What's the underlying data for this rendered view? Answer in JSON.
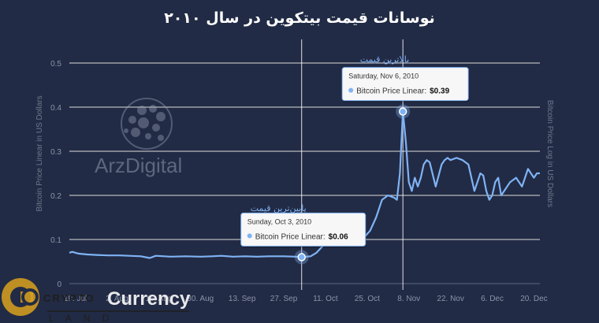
{
  "chart_data": {
    "type": "line",
    "title": "نوسانات قیمت بیتکوین در سال ۲۰۱۰",
    "ylabel": "Bitcoin Price Linear in US Dollars",
    "ylabel_right": "Bitcoin Price Log in US Dollars",
    "ylim": [
      0,
      0.5
    ],
    "xlim": [
      "2010-07-17",
      "2010-12-22"
    ],
    "yticks": [
      "0",
      "0.1",
      "0.2",
      "0.3",
      "0.4",
      "0.5"
    ],
    "xticks": [
      {
        "date": "2010-07-19",
        "label": "19. Jul"
      },
      {
        "date": "2010-08-02",
        "label": "2. Aug"
      },
      {
        "date": "2010-08-16",
        "label": "16. Aug"
      },
      {
        "date": "2010-08-30",
        "label": "30. Aug"
      },
      {
        "date": "2010-09-13",
        "label": "13. Sep"
      },
      {
        "date": "2010-09-27",
        "label": "27. Sep"
      },
      {
        "date": "2010-10-11",
        "label": "11. Oct"
      },
      {
        "date": "2010-10-25",
        "label": "25. Oct"
      },
      {
        "date": "2010-11-08",
        "label": "8. Nov"
      },
      {
        "date": "2010-11-22",
        "label": "22. Nov"
      },
      {
        "date": "2010-12-06",
        "label": "6. Dec"
      },
      {
        "date": "2010-12-20",
        "label": "20. Dec"
      }
    ],
    "grid": true,
    "legend": "none",
    "series": [
      {
        "color": "#7fb3f5",
        "x": [
          "2010-07-17",
          "2010-07-18",
          "2010-07-20",
          "2010-07-23",
          "2010-07-26",
          "2010-07-30",
          "2010-08-03",
          "2010-08-06",
          "2010-08-10",
          "2010-08-13",
          "2010-08-15",
          "2010-08-20",
          "2010-08-25",
          "2010-08-30",
          "2010-09-03",
          "2010-09-06",
          "2010-09-10",
          "2010-09-14",
          "2010-09-18",
          "2010-09-22",
          "2010-09-27",
          "2010-10-01",
          "2010-10-03",
          "2010-10-06",
          "2010-10-08",
          "2010-10-11",
          "2010-10-14",
          "2010-10-17",
          "2010-10-20",
          "2010-10-22",
          "2010-10-24",
          "2010-10-26",
          "2010-10-28",
          "2010-10-30",
          "2010-11-01",
          "2010-11-03",
          "2010-11-04",
          "2010-11-05",
          "2010-11-06",
          "2010-11-07",
          "2010-11-08",
          "2010-11-09",
          "2010-11-10",
          "2010-11-11",
          "2010-11-12",
          "2010-11-13",
          "2010-11-14",
          "2010-11-15",
          "2010-11-17",
          "2010-11-19",
          "2010-11-20",
          "2010-11-21",
          "2010-11-22",
          "2010-11-24",
          "2010-11-26",
          "2010-11-28",
          "2010-11-30",
          "2010-12-01",
          "2010-12-02",
          "2010-12-03",
          "2010-12-04",
          "2010-12-05",
          "2010-12-06",
          "2010-12-07",
          "2010-12-08",
          "2010-12-09",
          "2010-12-10",
          "2010-12-12",
          "2010-12-14",
          "2010-12-16",
          "2010-12-17",
          "2010-12-18",
          "2010-12-20",
          "2010-12-21",
          "2010-12-22"
        ],
        "y": [
          0.07,
          0.072,
          0.068,
          0.066,
          0.065,
          0.064,
          0.064,
          0.063,
          0.062,
          0.058,
          0.063,
          0.061,
          0.062,
          0.061,
          0.062,
          0.063,
          0.061,
          0.062,
          0.061,
          0.062,
          0.062,
          0.061,
          0.06,
          0.062,
          0.07,
          0.092,
          0.1,
          0.101,
          0.102,
          0.098,
          0.105,
          0.12,
          0.15,
          0.19,
          0.2,
          0.195,
          0.19,
          0.25,
          0.39,
          0.32,
          0.23,
          0.21,
          0.24,
          0.22,
          0.24,
          0.27,
          0.28,
          0.275,
          0.22,
          0.27,
          0.28,
          0.285,
          0.28,
          0.285,
          0.28,
          0.27,
          0.21,
          0.23,
          0.25,
          0.245,
          0.21,
          0.19,
          0.2,
          0.23,
          0.24,
          0.2,
          0.21,
          0.23,
          0.24,
          0.22,
          0.24,
          0.26,
          0.24,
          0.25,
          0.25
        ]
      }
    ],
    "crosshairs": [
      "2010-10-03",
      "2010-11-06"
    ],
    "annotations": [
      {
        "id": "high",
        "text": "بالاترین قیمت",
        "x": "2010-11-06",
        "y": 0.39,
        "tooltip_date": "Saturday, Nov 6, 2010",
        "tooltip_label": "Bitcoin Price Linear:",
        "tooltip_value": "$0.39"
      },
      {
        "id": "low",
        "text": "پایین‌ترین قیمت",
        "x": "2010-10-03",
        "y": 0.06,
        "tooltip_date": "Sunday, Oct 3, 2010",
        "tooltip_label": "Bitcoin Price Linear:",
        "tooltip_value": "$0.06"
      }
    ]
  },
  "watermarks": {
    "arzdigital": "ArzDigital",
    "cc_crypto": "CRYPTO",
    "cc_currency": "Currency",
    "cc_land": "L A N D"
  },
  "colors": {
    "background": "#222b45",
    "line": "#7fb3f5",
    "grid": "#dcdcdc",
    "crosshair": "#ffffff"
  }
}
